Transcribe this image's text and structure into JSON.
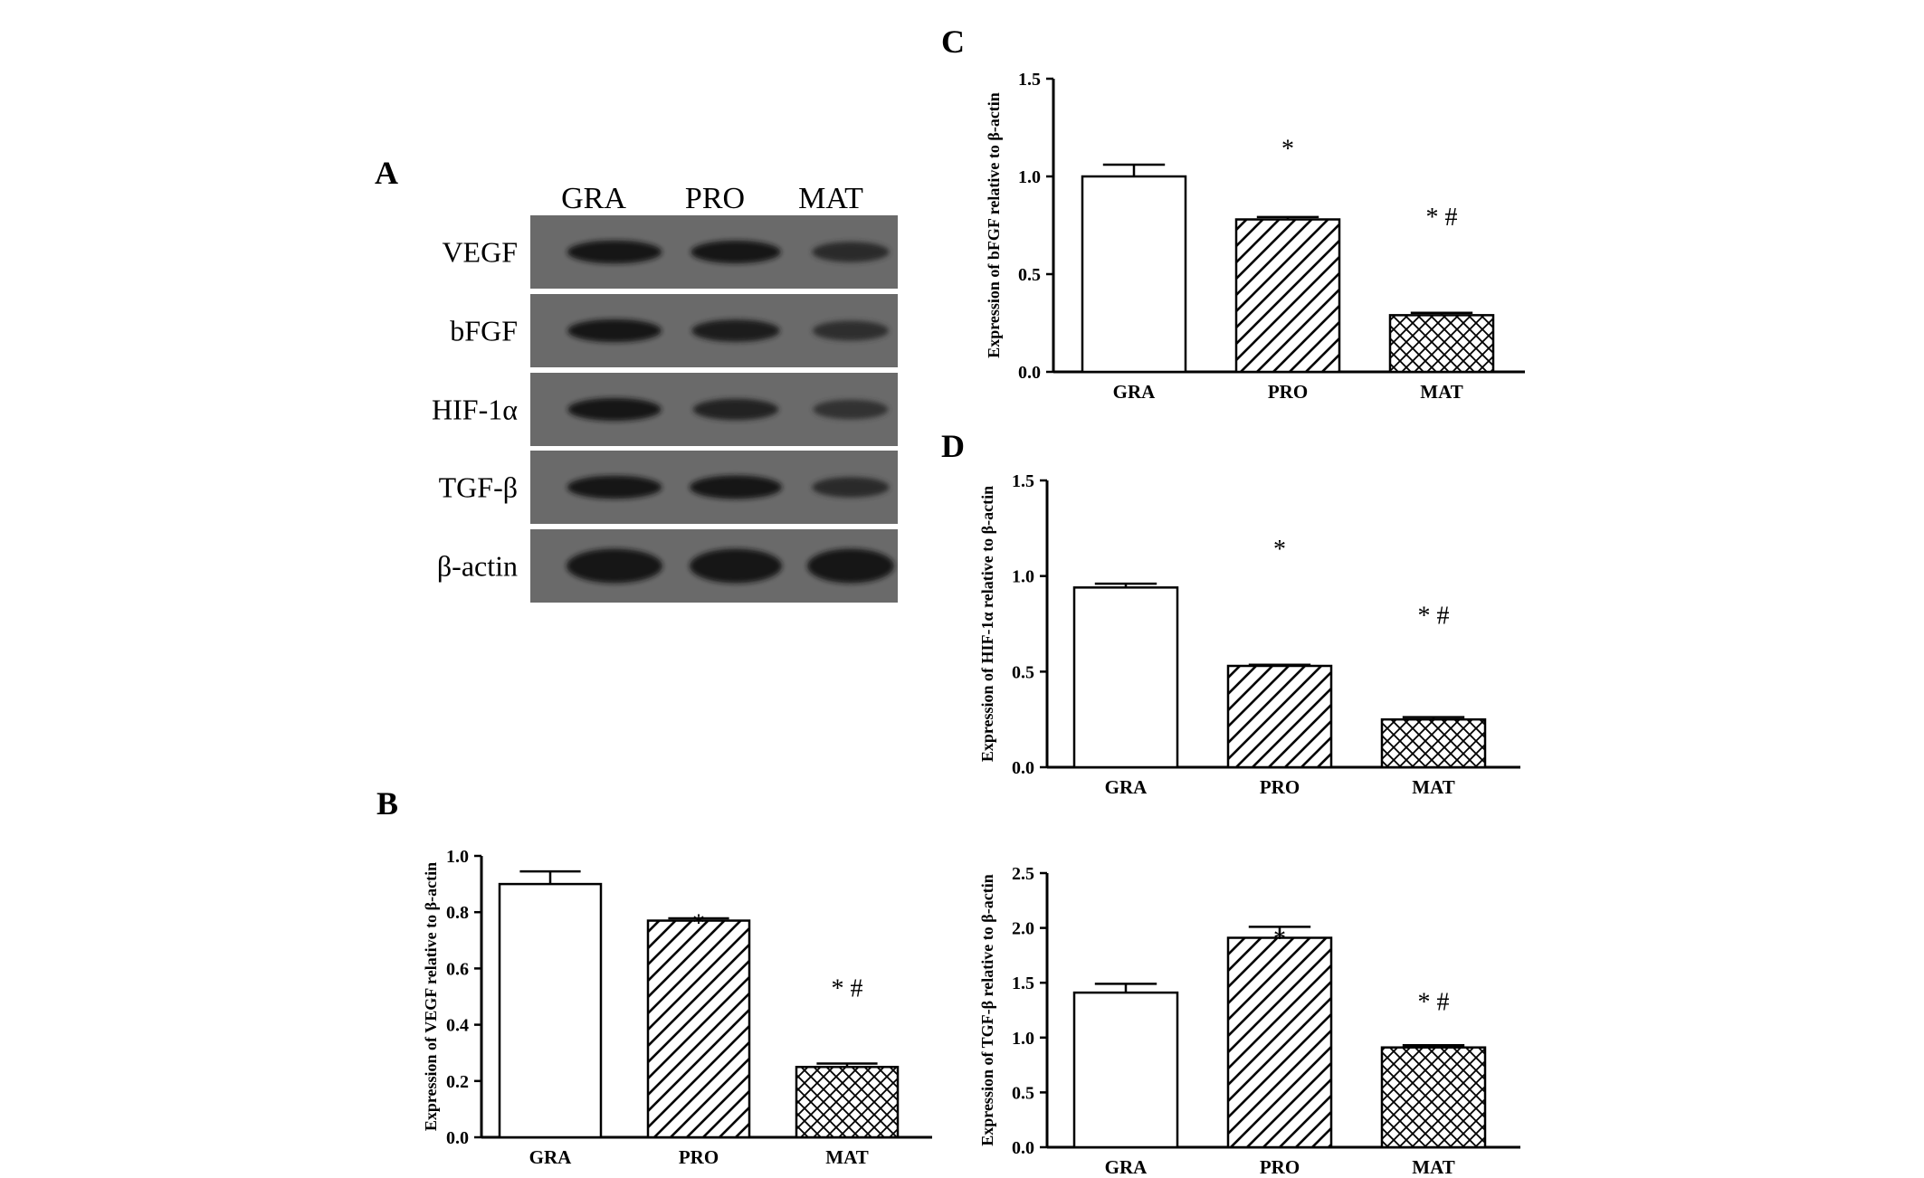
{
  "blot": {
    "letter": "A",
    "lanes": [
      "GRA",
      "PRO",
      "MAT"
    ],
    "proteins": [
      "VEGF",
      "bFGF",
      "HIF-1α",
      "TGF-β",
      "β-actin"
    ],
    "band_intensity": [
      [
        0.95,
        0.9,
        0.55
      ],
      [
        0.92,
        0.82,
        0.5
      ],
      [
        0.9,
        0.7,
        0.45
      ],
      [
        0.95,
        1.0,
        0.55
      ],
      [
        1.0,
        1.0,
        1.0
      ]
    ]
  },
  "chart_data": [
    {
      "letter": "B",
      "type": "bar",
      "categories": [
        "GRA",
        "PRO",
        "MAT"
      ],
      "values": [
        0.9,
        0.77,
        0.25
      ],
      "errors": [
        0.045,
        0.008,
        0.012
      ],
      "patterns": [
        "none",
        "diagonal",
        "crosshatch"
      ],
      "annotations": [
        "",
        "*",
        "*   #"
      ],
      "ylabel": "Expression of VEGF relative to β-actin",
      "ylim": [
        0,
        1.0
      ],
      "yticks": [
        "0.0",
        "0.2",
        "0.4",
        "0.6",
        "0.8",
        "1.0"
      ]
    },
    {
      "letter": "C",
      "type": "bar",
      "categories": [
        "GRA",
        "PRO",
        "MAT"
      ],
      "values": [
        1.0,
        0.78,
        0.29
      ],
      "errors": [
        0.06,
        0.012,
        0.012
      ],
      "patterns": [
        "none",
        "diagonal",
        "crosshatch"
      ],
      "annotations": [
        "",
        "*",
        "*   #"
      ],
      "ylabel": "Expression of bFGF relative to β-actin",
      "ylim": [
        0,
        1.5
      ],
      "yticks": [
        "0.0",
        "0.5",
        "1.0",
        "1.5"
      ]
    },
    {
      "letter": "D",
      "type": "bar",
      "categories": [
        "GRA",
        "PRO",
        "MAT"
      ],
      "values": [
        0.94,
        0.53,
        0.25
      ],
      "errors": [
        0.02,
        0.006,
        0.012
      ],
      "patterns": [
        "none",
        "diagonal",
        "crosshatch"
      ],
      "annotations": [
        "",
        "*",
        "*  #"
      ],
      "ylabel": "Expression of HIF-1α relative to β-actin",
      "ylim": [
        0,
        1.5
      ],
      "yticks": [
        "0.0",
        "0.5",
        "1.0",
        "1.5"
      ]
    },
    {
      "letter": "",
      "type": "bar",
      "categories": [
        "GRA",
        "PRO",
        "MAT"
      ],
      "values": [
        1.41,
        1.91,
        0.91
      ],
      "errors": [
        0.08,
        0.1,
        0.02
      ],
      "patterns": [
        "none",
        "diagonal",
        "crosshatch"
      ],
      "annotations": [
        "",
        "*",
        "*  #"
      ],
      "ylabel": "Expression of TGF-β relative to β-actin",
      "ylim": [
        0,
        2.5
      ],
      "yticks": [
        "0.0",
        "0.5",
        "1.0",
        "1.5",
        "2.0",
        "2.5"
      ]
    }
  ]
}
